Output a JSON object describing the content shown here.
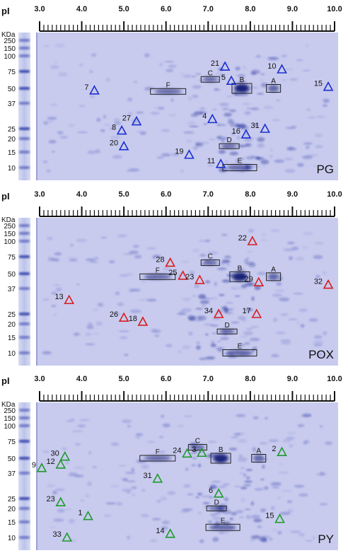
{
  "ph_ticks": [
    "3.0",
    "4.0",
    "5.0",
    "6.0",
    "7.0",
    "8.0",
    "9.0",
    "10.0"
  ],
  "axis_label": "pI",
  "marker_unit": "KDa",
  "marker_values": [
    "250",
    "150",
    "100",
    "75",
    "50",
    "37",
    "25",
    "20",
    "15",
    "10"
  ],
  "colors": {
    "PG": "#1a2fd0",
    "POX": "#d81e1e",
    "PY": "#1f9a2c",
    "gel": "#c8cbee",
    "box": "#222222"
  },
  "panels": [
    {
      "label": "PG",
      "colorKey": "PG",
      "boxes": [
        {
          "label": "A",
          "pi": 8.55,
          "mw": 50
        },
        {
          "label": "B",
          "pi": 7.8,
          "mw": 50
        },
        {
          "label": "C",
          "pi": 7.05,
          "mw": 62
        },
        {
          "label": "D",
          "pi": 7.5,
          "mw": 17
        },
        {
          "label": "E",
          "pi": 7.75,
          "mw": 9
        },
        {
          "label": "F",
          "pi": 6.05,
          "mw": 47
        }
      ],
      "spots": [
        {
          "id": "21",
          "pi": 7.4,
          "mw": 82
        },
        {
          "id": "10",
          "pi": 8.75,
          "mw": 78
        },
        {
          "id": "5",
          "pi": 7.55,
          "mw": 60
        },
        {
          "id": "15",
          "pi": 9.85,
          "mw": 52
        },
        {
          "id": "7",
          "pi": 4.3,
          "mw": 48
        },
        {
          "id": "27",
          "pi": 5.3,
          "mw": 28
        },
        {
          "id": "4",
          "pi": 7.1,
          "mw": 29
        },
        {
          "id": "31",
          "pi": 8.35,
          "mw": 25
        },
        {
          "id": "16",
          "pi": 7.9,
          "mw": 22
        },
        {
          "id": "8",
          "pi": 4.95,
          "mw": 24
        },
        {
          "id": "20",
          "pi": 5.0,
          "mw": 17
        },
        {
          "id": "19",
          "pi": 6.55,
          "mw": 14
        },
        {
          "id": "11",
          "pi": 7.3,
          "mw": 11
        }
      ]
    },
    {
      "label": "POX",
      "colorKey": "POX",
      "boxes": [
        {
          "label": "A",
          "pi": 8.55,
          "mw": 47
        },
        {
          "label": "B",
          "pi": 7.75,
          "mw": 47
        },
        {
          "label": "C",
          "pi": 7.05,
          "mw": 65
        },
        {
          "label": "D",
          "pi": 7.45,
          "mw": 17
        },
        {
          "label": "E",
          "pi": 7.75,
          "mw": 9
        },
        {
          "label": "F",
          "pi": 5.8,
          "mw": 47
        }
      ],
      "spots": [
        {
          "id": "22",
          "pi": 8.05,
          "mw": 100
        },
        {
          "id": "28",
          "pi": 6.1,
          "mw": 65
        },
        {
          "id": "25",
          "pi": 6.4,
          "mw": 48
        },
        {
          "id": "23",
          "pi": 6.8,
          "mw": 44
        },
        {
          "id": "29",
          "pi": 8.2,
          "mw": 42
        },
        {
          "id": "32",
          "pi": 9.85,
          "mw": 40
        },
        {
          "id": "13",
          "pi": 3.7,
          "mw": 31
        },
        {
          "id": "26",
          "pi": 5.0,
          "mw": 23
        },
        {
          "id": "18",
          "pi": 5.45,
          "mw": 21
        },
        {
          "id": "34",
          "pi": 7.25,
          "mw": 25
        },
        {
          "id": "17",
          "pi": 8.15,
          "mw": 25
        }
      ]
    },
    {
      "label": "PY",
      "colorKey": "PY",
      "boxes": [
        {
          "label": "A",
          "pi": 8.2,
          "mw": 50
        },
        {
          "label": "B",
          "pi": 7.3,
          "mw": 50
        },
        {
          "label": "C",
          "pi": 6.75,
          "mw": 65
        },
        {
          "label": "D",
          "pi": 7.2,
          "mw": 20
        },
        {
          "label": "E",
          "pi": 7.35,
          "mw": 13
        },
        {
          "label": "F",
          "pi": 5.8,
          "mw": 50
        }
      ],
      "spots": [
        {
          "id": "2",
          "pi": 8.75,
          "mw": 58
        },
        {
          "id": "30",
          "pi": 3.6,
          "mw": 52
        },
        {
          "id": "3",
          "pi": 6.85,
          "mw": 57
        },
        {
          "id": "24",
          "pi": 6.5,
          "mw": 56
        },
        {
          "id": "12",
          "pi": 3.5,
          "mw": 44
        },
        {
          "id": "9",
          "pi": 3.05,
          "mw": 41
        },
        {
          "id": "31",
          "pi": 5.8,
          "mw": 34
        },
        {
          "id": "6",
          "pi": 7.25,
          "mw": 27
        },
        {
          "id": "23",
          "pi": 3.5,
          "mw": 23
        },
        {
          "id": "1",
          "pi": 4.15,
          "mw": 17
        },
        {
          "id": "15",
          "pi": 8.7,
          "mw": 16
        },
        {
          "id": "14",
          "pi": 6.1,
          "mw": 11
        },
        {
          "id": "33",
          "pi": 3.65,
          "mw": 9
        }
      ]
    }
  ]
}
